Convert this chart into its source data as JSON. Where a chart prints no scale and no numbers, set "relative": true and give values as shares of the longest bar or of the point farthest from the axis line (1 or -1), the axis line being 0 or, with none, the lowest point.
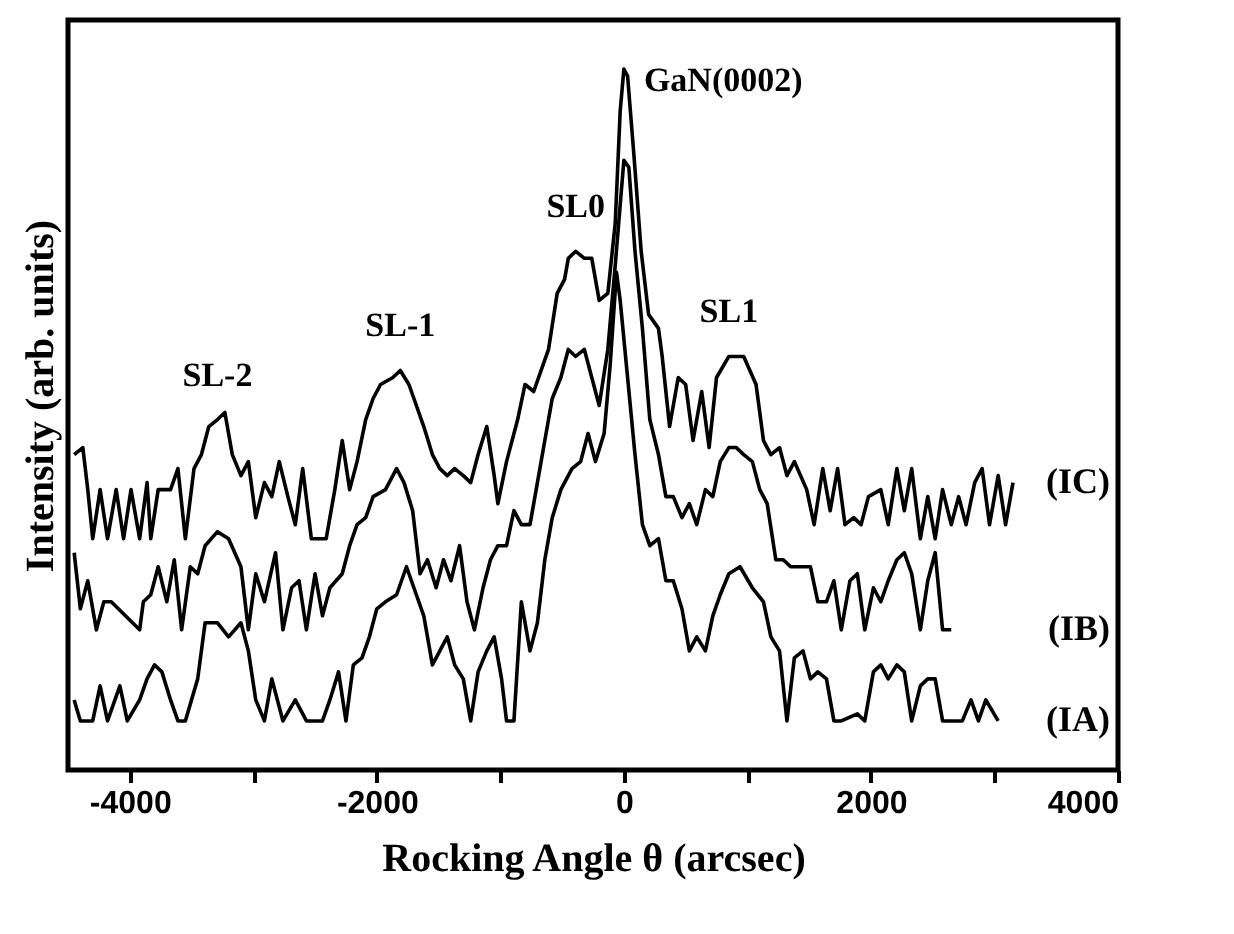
{
  "chart_data": {
    "type": "line",
    "relative": true,
    "xlabel": "Rocking Angle θ (arcsec)",
    "ylabel": "Intensity (arb. units)",
    "xlim": [
      -4500,
      4000
    ],
    "xticks": [
      -4000,
      {
        "value": -3000,
        "label": null
      },
      -2000,
      {
        "value": -1000,
        "label": null
      },
      0,
      {
        "value": 1000,
        "label": null
      },
      2000,
      {
        "value": 3000,
        "label": null
      },
      4000
    ],
    "grid": false,
    "legend": false,
    "marker": "none",
    "line_style": "solid",
    "annotations": [
      {
        "text": "SL-2",
        "x": -3290,
        "y": 0.5
      },
      {
        "text": "SL-1",
        "x": -1810,
        "y": 0.57
      },
      {
        "text": "SL0",
        "x": -390,
        "y": 0.74
      },
      {
        "text": "SL1",
        "x": 850,
        "y": 0.59
      },
      {
        "text": "GaN(0002)",
        "x": 0,
        "y": 1.0
      }
    ],
    "series": [
      {
        "name": "(IC)",
        "color": "#000000",
        "x": [
          -4450,
          -4380,
          -4340,
          -4300,
          -4240,
          -4180,
          -4110,
          -4050,
          -3990,
          -3920,
          -3860,
          -3830,
          -3770,
          -3670,
          -3610,
          -3550,
          -3480,
          -3420,
          -3360,
          -3290,
          -3230,
          -3170,
          -3100,
          -3040,
          -2980,
          -2910,
          -2850,
          -2790,
          -2720,
          -2660,
          -2600,
          -2530,
          -2410,
          -2340,
          -2280,
          -2220,
          -2160,
          -2090,
          -2030,
          -1970,
          -1870,
          -1810,
          -1740,
          -1680,
          -1620,
          -1550,
          -1490,
          -1430,
          -1370,
          -1300,
          -1240,
          -1180,
          -1110,
          -1050,
          -1020,
          -950,
          -860,
          -800,
          -730,
          -670,
          -610,
          -540,
          -480,
          -450,
          -390,
          -320,
          -260,
          -200,
          -130,
          -70,
          -30,
          0,
          30,
          80,
          140,
          200,
          280,
          310,
          370,
          440,
          500,
          560,
          630,
          690,
          750,
          850,
          970,
          1070,
          1130,
          1190,
          1260,
          1320,
          1380,
          1480,
          1540,
          1610,
          1670,
          1730,
          1790,
          1860,
          1920,
          1980,
          2080,
          2140,
          2210,
          2270,
          2330,
          2400,
          2460,
          2520,
          2580,
          2650,
          2710,
          2770,
          2840,
          2900,
          2960,
          3030,
          3090,
          3150
        ],
        "values": [
          0.45,
          0.46,
          0.4,
          0.33,
          0.4,
          0.33,
          0.4,
          0.33,
          0.4,
          0.33,
          0.41,
          0.33,
          0.4,
          0.4,
          0.43,
          0.33,
          0.43,
          0.45,
          0.49,
          0.5,
          0.51,
          0.45,
          0.42,
          0.44,
          0.36,
          0.41,
          0.39,
          0.44,
          0.39,
          0.35,
          0.43,
          0.33,
          0.33,
          0.4,
          0.47,
          0.4,
          0.44,
          0.5,
          0.53,
          0.55,
          0.56,
          0.57,
          0.55,
          0.52,
          0.49,
          0.45,
          0.43,
          0.42,
          0.43,
          0.42,
          0.41,
          0.45,
          0.49,
          0.42,
          0.38,
          0.44,
          0.5,
          0.55,
          0.54,
          0.57,
          0.6,
          0.68,
          0.7,
          0.73,
          0.74,
          0.73,
          0.73,
          0.67,
          0.68,
          0.78,
          0.94,
          1.0,
          0.99,
          0.88,
          0.74,
          0.65,
          0.63,
          0.59,
          0.49,
          0.56,
          0.55,
          0.47,
          0.54,
          0.46,
          0.56,
          0.59,
          0.59,
          0.55,
          0.47,
          0.45,
          0.46,
          0.42,
          0.44,
          0.4,
          0.35,
          0.43,
          0.37,
          0.43,
          0.35,
          0.36,
          0.35,
          0.39,
          0.4,
          0.35,
          0.43,
          0.37,
          0.43,
          0.33,
          0.39,
          0.33,
          0.4,
          0.35,
          0.39,
          0.35,
          0.41,
          0.43,
          0.35,
          0.42,
          0.35,
          0.41
        ]
      },
      {
        "name": "(IB)",
        "color": "#000000",
        "x": [
          -4450,
          -4400,
          -4340,
          -4270,
          -4210,
          -4150,
          -3920,
          -3890,
          -3830,
          -3770,
          -3700,
          -3640,
          -3580,
          -3510,
          -3450,
          -3390,
          -3290,
          -3200,
          -3100,
          -3040,
          -2980,
          -2910,
          -2820,
          -2760,
          -2690,
          -2630,
          -2570,
          -2500,
          -2440,
          -2380,
          -2280,
          -2220,
          -2160,
          -2090,
          -2030,
          -1930,
          -1840,
          -1780,
          -1710,
          -1650,
          -1590,
          -1520,
          -1460,
          -1400,
          -1330,
          -1270,
          -1210,
          -1140,
          -1080,
          -1020,
          -950,
          -890,
          -830,
          -760,
          -700,
          -640,
          -580,
          -510,
          -450,
          -390,
          -320,
          -260,
          -200,
          -130,
          -70,
          0,
          40,
          90,
          150,
          210,
          280,
          340,
          400,
          470,
          530,
          590,
          660,
          720,
          780,
          850,
          910,
          970,
          1040,
          1100,
          1160,
          1230,
          1290,
          1350,
          1420,
          1510,
          1570,
          1640,
          1700,
          1760,
          1830,
          1890,
          1950,
          2020,
          2080,
          2140,
          2210,
          2270,
          2330,
          2400,
          2460,
          2520,
          2580,
          2650
        ],
        "values": [
          0.31,
          0.23,
          0.27,
          0.2,
          0.24,
          0.24,
          0.2,
          0.24,
          0.25,
          0.29,
          0.24,
          0.3,
          0.2,
          0.29,
          0.28,
          0.32,
          0.34,
          0.33,
          0.29,
          0.2,
          0.28,
          0.24,
          0.31,
          0.2,
          0.26,
          0.27,
          0.2,
          0.28,
          0.22,
          0.26,
          0.28,
          0.32,
          0.35,
          0.36,
          0.39,
          0.4,
          0.43,
          0.41,
          0.37,
          0.28,
          0.3,
          0.26,
          0.3,
          0.27,
          0.32,
          0.24,
          0.2,
          0.26,
          0.3,
          0.32,
          0.32,
          0.37,
          0.35,
          0.35,
          0.41,
          0.47,
          0.53,
          0.56,
          0.6,
          0.59,
          0.6,
          0.56,
          0.52,
          0.6,
          0.72,
          0.87,
          0.86,
          0.74,
          0.63,
          0.5,
          0.45,
          0.39,
          0.39,
          0.36,
          0.38,
          0.35,
          0.4,
          0.39,
          0.44,
          0.46,
          0.46,
          0.45,
          0.44,
          0.4,
          0.38,
          0.3,
          0.3,
          0.29,
          0.29,
          0.29,
          0.24,
          0.24,
          0.27,
          0.2,
          0.27,
          0.28,
          0.2,
          0.26,
          0.24,
          0.27,
          0.3,
          0.31,
          0.28,
          0.2,
          0.27,
          0.31,
          0.2,
          0.2
        ]
      },
      {
        "name": "(IA)",
        "color": "#000000",
        "x": [
          -4450,
          -4400,
          -4300,
          -4240,
          -4180,
          -4080,
          -4020,
          -3920,
          -3860,
          -3800,
          -3740,
          -3670,
          -3610,
          -3550,
          -3450,
          -3390,
          -3290,
          -3200,
          -3100,
          -3040,
          -2980,
          -2910,
          -2850,
          -2760,
          -2660,
          -2570,
          -2440,
          -2380,
          -2310,
          -2250,
          -2190,
          -2120,
          -2060,
          -2000,
          -1930,
          -1840,
          -1760,
          -1680,
          -1620,
          -1550,
          -1490,
          -1430,
          -1370,
          -1300,
          -1240,
          -1180,
          -1110,
          -1050,
          -990,
          -950,
          -890,
          -830,
          -760,
          -700,
          -640,
          -580,
          -510,
          -420,
          -350,
          -290,
          -230,
          -160,
          -110,
          -60,
          -30,
          30,
          90,
          150,
          210,
          280,
          340,
          400,
          470,
          530,
          590,
          660,
          720,
          780,
          850,
          940,
          1040,
          1130,
          1190,
          1260,
          1320,
          1380,
          1450,
          1510,
          1570,
          1640,
          1700,
          1760,
          1890,
          1950,
          2020,
          2080,
          2140,
          2210,
          2270,
          2330,
          2400,
          2460,
          2520,
          2580,
          2650,
          2740,
          2810,
          2870,
          2930,
          3030
        ],
        "values": [
          0.1,
          0.07,
          0.07,
          0.12,
          0.07,
          0.12,
          0.07,
          0.1,
          0.13,
          0.15,
          0.14,
          0.1,
          0.07,
          0.07,
          0.13,
          0.21,
          0.21,
          0.19,
          0.21,
          0.17,
          0.1,
          0.07,
          0.13,
          0.07,
          0.1,
          0.07,
          0.07,
          0.1,
          0.14,
          0.07,
          0.15,
          0.16,
          0.19,
          0.23,
          0.24,
          0.25,
          0.29,
          0.25,
          0.22,
          0.15,
          0.17,
          0.19,
          0.15,
          0.13,
          0.07,
          0.14,
          0.17,
          0.19,
          0.13,
          0.07,
          0.07,
          0.24,
          0.17,
          0.21,
          0.3,
          0.36,
          0.4,
          0.43,
          0.44,
          0.48,
          0.44,
          0.48,
          0.58,
          0.71,
          0.67,
          0.56,
          0.45,
          0.35,
          0.32,
          0.33,
          0.27,
          0.27,
          0.23,
          0.17,
          0.19,
          0.17,
          0.22,
          0.25,
          0.28,
          0.29,
          0.26,
          0.24,
          0.19,
          0.17,
          0.07,
          0.16,
          0.17,
          0.13,
          0.14,
          0.13,
          0.07,
          0.07,
          0.08,
          0.07,
          0.14,
          0.15,
          0.13,
          0.15,
          0.14,
          0.07,
          0.12,
          0.13,
          0.13,
          0.07,
          0.07,
          0.07,
          0.1,
          0.07,
          0.1,
          0.07
        ]
      }
    ]
  }
}
